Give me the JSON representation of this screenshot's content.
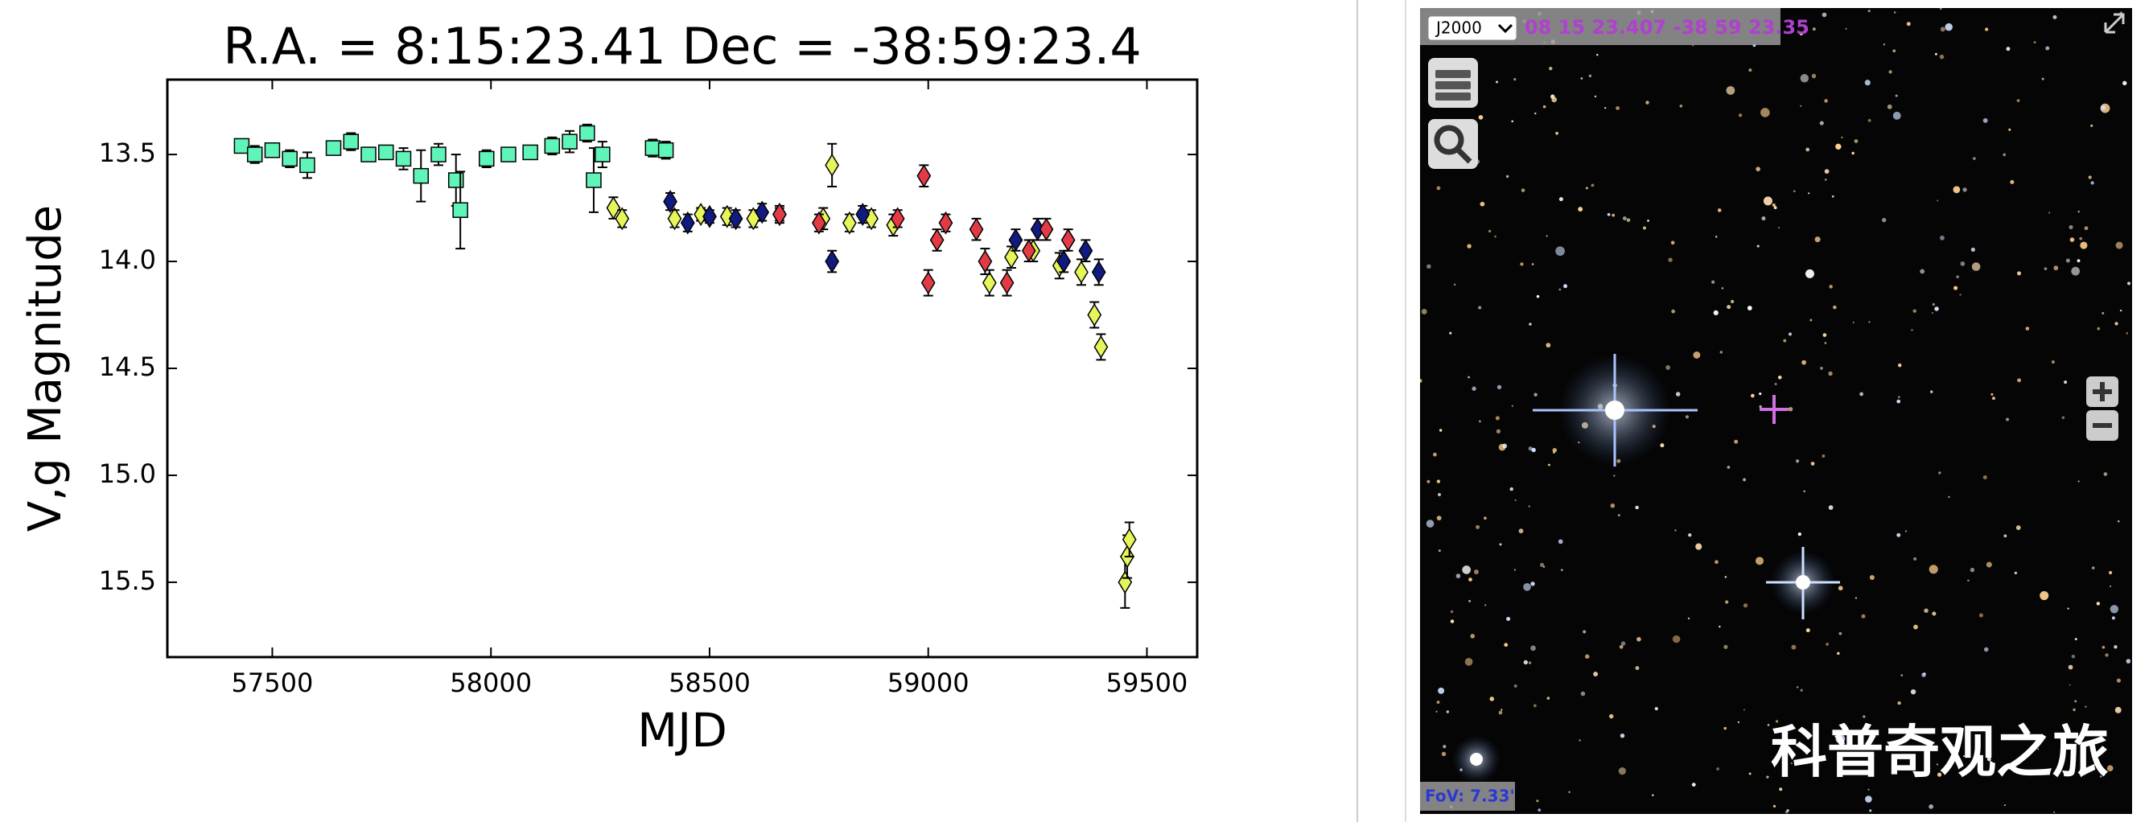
{
  "chart_data": {
    "type": "scatter",
    "title": "R.A. = 8:15:23.41    Dec = -38:59:23.4",
    "ylabel": "V,g Magnitude",
    "xlabel": "MJD",
    "xlim": [
      57260,
      59615
    ],
    "ylim": [
      15.85,
      13.15
    ],
    "xticks": [
      57500,
      58000,
      58500,
      59000,
      59500
    ],
    "yticks": [
      13.5,
      {
        "value": 14,
        "label": "14.0"
      },
      14.5,
      {
        "value": 15,
        "label": "15.0"
      },
      15.5
    ],
    "grid": false,
    "series": [
      {
        "color": "#5ff5b8",
        "marker": "square",
        "x": [
          57430,
          57460,
          57500,
          57540,
          57580,
          57640,
          57680,
          57720,
          57760,
          57800,
          57840,
          57880,
          57920,
          57930,
          57990,
          58040,
          58090,
          58140,
          58180,
          58220,
          58235,
          58255,
          58370,
          58400
        ],
        "values": [
          13.46,
          13.5,
          13.48,
          13.52,
          13.55,
          13.47,
          13.44,
          13.5,
          13.49,
          13.52,
          13.6,
          13.5,
          13.62,
          13.76,
          13.52,
          13.5,
          13.49,
          13.46,
          13.44,
          13.4,
          13.62,
          13.5,
          13.47,
          13.48
        ],
        "errors": [
          0.03,
          0.04,
          0.03,
          0.04,
          0.06,
          0.03,
          0.04,
          0.03,
          0.03,
          0.05,
          0.12,
          0.05,
          0.12,
          0.18,
          0.04,
          0.03,
          0.03,
          0.04,
          0.05,
          0.04,
          0.15,
          0.06,
          0.04,
          0.04
        ]
      },
      {
        "color": "#e6f55a",
        "marker": "diamond",
        "x": [
          58280,
          58300,
          58420,
          58480,
          58540,
          58600,
          58660,
          58760,
          58780,
          58820,
          58870,
          58920,
          59140,
          59190,
          59240,
          59300,
          59350,
          59380,
          59395,
          59450,
          59455,
          59460
        ],
        "values": [
          13.75,
          13.8,
          13.8,
          13.78,
          13.79,
          13.8,
          13.78,
          13.8,
          13.55,
          13.82,
          13.8,
          13.83,
          14.1,
          13.98,
          13.95,
          14.02,
          14.05,
          14.25,
          14.4,
          15.5,
          15.38,
          15.3
        ],
        "errors": [
          0.05,
          0.04,
          0.04,
          0.03,
          0.04,
          0.04,
          0.03,
          0.05,
          0.1,
          0.04,
          0.04,
          0.05,
          0.06,
          0.05,
          0.05,
          0.06,
          0.06,
          0.06,
          0.06,
          0.12,
          0.1,
          0.08
        ]
      },
      {
        "color": "#101a80",
        "marker": "diamond",
        "x": [
          58410,
          58450,
          58500,
          58560,
          58620,
          58780,
          58850,
          59200,
          59250,
          59310,
          59360,
          59390
        ],
        "values": [
          13.72,
          13.82,
          13.79,
          13.8,
          13.77,
          14.0,
          13.78,
          13.9,
          13.85,
          14.0,
          13.95,
          14.05
        ],
        "errors": [
          0.04,
          0.04,
          0.03,
          0.04,
          0.04,
          0.05,
          0.04,
          0.05,
          0.05,
          0.05,
          0.05,
          0.06
        ]
      },
      {
        "color": "#e33b45",
        "marker": "diamond",
        "x": [
          58660,
          58750,
          58930,
          58990,
          59000,
          59020,
          59040,
          59110,
          59130,
          59180,
          59230,
          59270,
          59320
        ],
        "values": [
          13.78,
          13.82,
          13.8,
          13.6,
          14.1,
          13.9,
          13.82,
          13.85,
          14.0,
          14.1,
          13.95,
          13.85,
          13.9
        ],
        "errors": [
          0.04,
          0.04,
          0.04,
          0.05,
          0.06,
          0.05,
          0.04,
          0.05,
          0.06,
          0.06,
          0.05,
          0.05,
          0.05
        ]
      }
    ]
  },
  "viewer": {
    "frame": "J2000",
    "coordinates": "08 15 23.407 -38 59 23.35",
    "fov": "FoV: 7.33'",
    "watermark": "科普奇观之旅"
  }
}
